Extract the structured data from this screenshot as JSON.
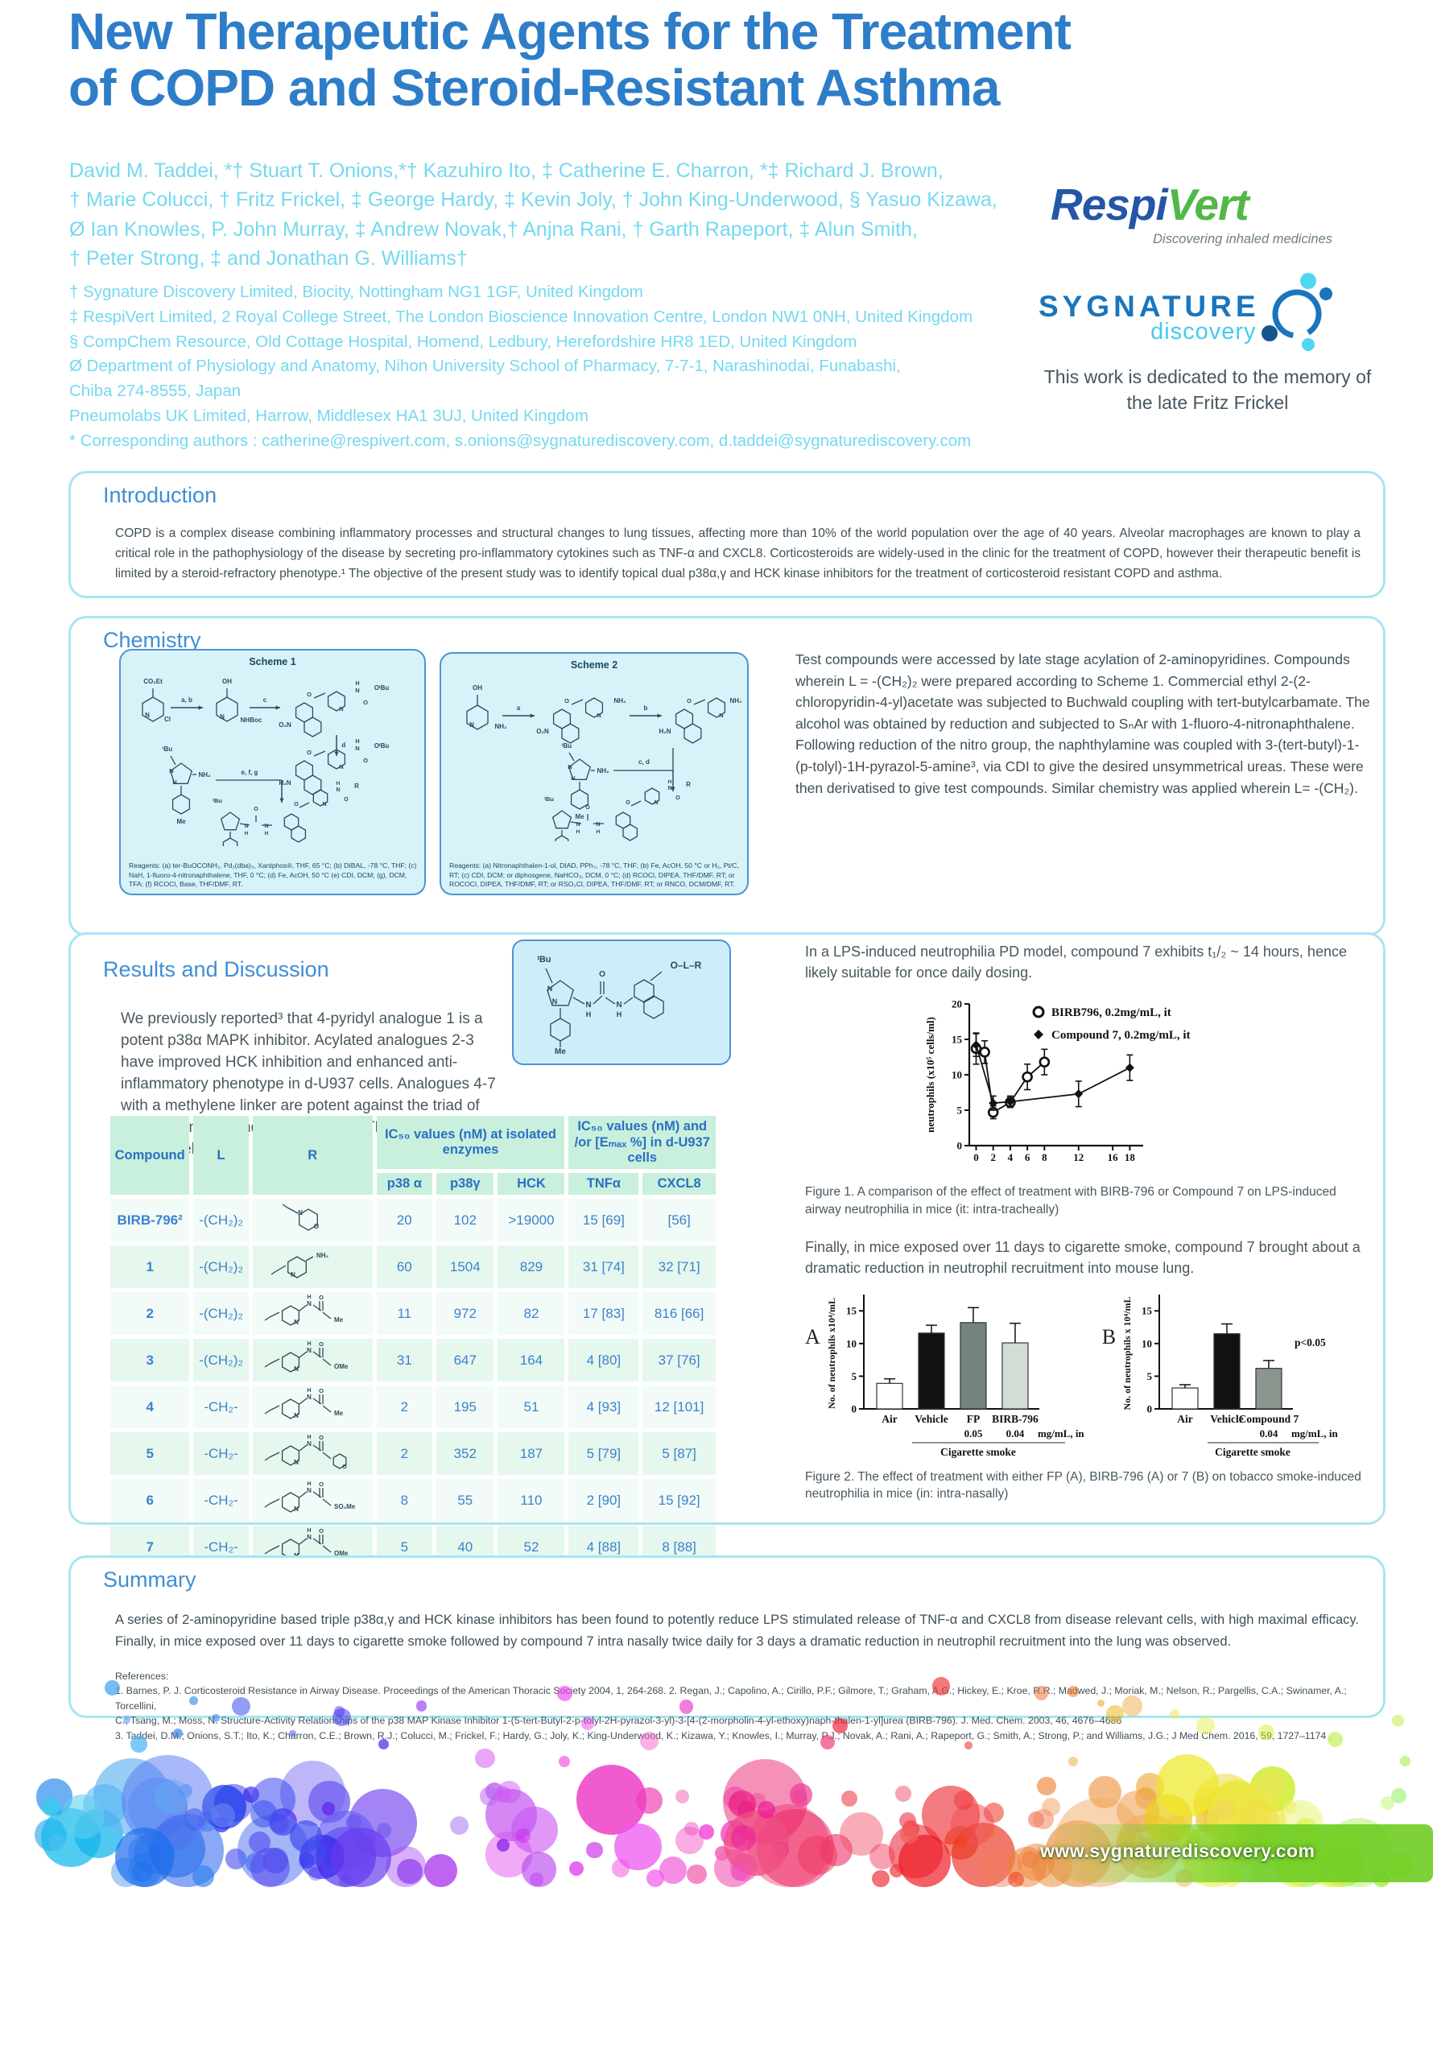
{
  "poster": {
    "title_line1": "New Therapeutic Agents for the Treatment",
    "title_line2": "of COPD and Steroid-Resistant Asthma",
    "authors": [
      "David M. Taddei, *† Stuart T. Onions,*† Kazuhiro Ito, ‡ Catherine E. Charron, *‡ Richard J. Brown,",
      "† Marie Colucci, † Fritz Frickel, ‡ George Hardy, ‡ Kevin Joly, † John King-Underwood, § Yasuo Kizawa,",
      "Ø Ian Knowles,   P. John Murray, ‡ Andrew Novak,† Anjna Rani, † Garth Rapeport, ‡ Alun Smith,",
      "† Peter Strong, ‡ and Jonathan G. Williams†"
    ],
    "affiliations": [
      "† Sygnature Discovery Limited, Biocity, Nottingham NG1 1GF, United Kingdom",
      "‡ RespiVert Limited, 2 Royal College Street, The London Bioscience Innovation Centre, London NW1 0NH, United Kingdom",
      "§ CompChem Resource, Old Cottage Hospital, Homend, Ledbury, Herefordshire HR8 1ED, United Kingdom",
      "Ø Department of Physiology and Anatomy, Nihon University School of Pharmacy, 7-7-1, Narashinodai, Funabashi,",
      "Chiba 274-8555, Japan",
      "Pneumolabs UK Limited, Harrow, Middlesex HA1 3UJ, United Kingdom",
      "* Corresponding authors : catherine@respivert.com,  s.onions@sygnaturediscovery.com, d.taddei@sygnaturediscovery.com"
    ],
    "dedication": "This work is dedicated to the memory of the late Fritz Frickel"
  },
  "logos": {
    "respivert": {
      "respi": "Respi",
      "vert": "Vert",
      "tagline": "Discovering inhaled medicines"
    },
    "sygnature": {
      "name": "SYGNATURE",
      "sub": "discovery"
    }
  },
  "colors": {
    "title_blue": "#2e7dc8",
    "cyan_text": "#74d9f0",
    "heading_blue": "#3e8fd5",
    "box_border": "#a5e6f3",
    "scheme_bg": "#d8f2fa",
    "scheme_border": "#4e93d3",
    "table_header_bg": "#c8f0dd",
    "table_text": "#3b82ce",
    "respi_blue": "#2456a8",
    "vert_green": "#53b748"
  },
  "introduction": {
    "heading": "Introduction",
    "body": "COPD is a complex disease combining inflammatory processes and structural changes to lung tissues, affecting more than 10% of the world population over the age of 40 years. Alveolar macrophages are known to play a critical role in the pathophysiology of the disease by secreting pro-inflammatory cytokines such as TNF-α and CXCL8. Corticosteroids are widely-used in the clinic for the treatment of COPD, however their therapeutic benefit is limited by a steroid-refractory phenotype.¹ The objective of the present study was to identify topical dual p38α,γ and HCK kinase inhibitors for the treatment of corticosteroid resistant COPD and asthma."
  },
  "chemistry": {
    "heading": "Chemistry",
    "body": "Test compounds were accessed by late stage acylation of 2-aminopyridines. Compounds wherein L = -(CH₂)₂ were prepared according to Scheme 1. Commercial ethyl 2-(2-chloropyridin-4-yl)acetate was subjected to Buchwald coupling with tert-butylcarbamate. The alcohol was obtained by reduction and subjected to SₙAr  with 1-fluoro-4-nitronaphthalene.  Following reduction of the nitro group, the naphthylamine was coupled with 3-(tert-butyl)-1-(p-tolyl)-1H-pyrazol-5-amine³, via CDI to give the desired unsymmetrical ureas. These were then derivatised to give test compounds. Similar chemistry was applied wherein L= -(CH₂).",
    "scheme1": {
      "title": "Scheme 1",
      "labels": {
        "co2et": "CO₂Et",
        "cl": "Cl",
        "oh": "OH",
        "nhboc": "NHBoc",
        "o2n": "O₂N",
        "h2n": "H₂N",
        "obu": "OᵗBu",
        "nh2": "NH₂",
        "tbu": "ᵗBu",
        "me": "Me",
        "r": "R",
        "n": "N",
        "o": "O",
        "h": "H",
        "step_ab": "a, b",
        "step_c": "c",
        "step_d": "d",
        "step_efg": "e, f, g"
      },
      "reagents": "Reagents: (a) ter-BuOCONH₂, Pd₂(dba)₃, Xantphos®, THF, 65 °C; (b) DIBAL, -78 °C, THF; (c) NaH, 1-fluoro-4-nitronaphthalene, THF, 0 °C; (d) Fe, AcOH, 50 °C (e) CDI, DCM; (g), DCM, TFA; (f) RCOCl, Base, THF/DMF, RT."
    },
    "scheme2": {
      "title": "Scheme 2",
      "labels": {
        "oh": "OH",
        "nh2": "NH₂",
        "o2n": "O₂N",
        "h2n": "H₂N",
        "tbu": "ᵗBu",
        "me": "Me",
        "r": "R",
        "n": "N",
        "o": "O",
        "h": "H",
        "step_a": "a",
        "step_b": "b",
        "step_cd": "c, d"
      },
      "reagents": "Reagents: (a) Nitronaphthalen-1-ol, DIAD, PPh₃, -78 °C, THF; (b) Fe, AcOH, 50 °C or H₂, Pt/C, RT; (c) CDI, DCM; or diphosgene, NaHCO₃, DCM, 0 °C; (d) RCOCl, DIPEA, THF/DMF, RT; or ROCOCl, DIPEA, THF/DMF, RT; or RSO₂Cl, DIPEA, THF/DMF, RT; or RNCO, DCM/DMF, RT."
    }
  },
  "results": {
    "heading": "Results and Discussion",
    "intro": "We previously reported³ that 4-pyridyl analogue 1 is a potent p38α MAPK inhibitor. Acylated analogues 2-3 have improved HCK inhibition and enhanced anti-inflammatory phenotype in d-U937 cells. Analogues 4-7 with a methylene linker are potent against the triad of isolated kinases and strongly inhibit TNFα and CXCL8 in d-U937 cells.",
    "structure_labels": {
      "tbu": "ᵗBu",
      "olr": "O–L–R",
      "me": "Me"
    },
    "table": {
      "headers": {
        "compound": "Compound",
        "l": "L",
        "r": "R",
        "group1": "IC₅₀ values (nM) at isolated enzymes",
        "group2": "IC₅₀ values (nM) and /or [Eₘₐₓ %] in d-U937 cells",
        "sub": [
          "p38 α",
          "p38γ",
          "HCK",
          "TNFα",
          "CXCL8"
        ]
      },
      "rows": [
        {
          "compound": "BIRB-796²",
          "l": "-(CH₂)₂",
          "r_type": "morpholine",
          "r_label": "",
          "p38a": "20",
          "p38g": "102",
          "hck": ">19000",
          "tnfa": "15 [69]",
          "cxcl8": "[56]"
        },
        {
          "compound": "1",
          "l": "-(CH₂)₂",
          "r_type": "aminopyridine",
          "r_label": "NH₂",
          "p38a": "60",
          "p38g": "1504",
          "hck": "829",
          "tnfa": "31 [74]",
          "cxcl8": "32 [71]"
        },
        {
          "compound": "2",
          "l": "-(CH₂)₂",
          "r_type": "amide",
          "r_label": "Me",
          "p38a": "11",
          "p38g": "972",
          "hck": "82",
          "tnfa": "17 [83]",
          "cxcl8": "816 [66]"
        },
        {
          "compound": "3",
          "l": "-(CH₂)₂",
          "r_type": "amide",
          "r_label": "OMe",
          "p38a": "31",
          "p38g": "647",
          "hck": "164",
          "tnfa": "4 [80]",
          "cxcl8": "37 [76]"
        },
        {
          "compound": "4",
          "l": "-CH₂-",
          "r_type": "amide",
          "r_label": "Me",
          "p38a": "2",
          "p38g": "195",
          "hck": "51",
          "tnfa": "4 [93]",
          "cxcl8": "12 [101]"
        },
        {
          "compound": "5",
          "l": "-CH₂-",
          "r_type": "amide_morpholine",
          "r_label": "",
          "p38a": "2",
          "p38g": "352",
          "hck": "187",
          "tnfa": "5 [79]",
          "cxcl8": "5 [87]"
        },
        {
          "compound": "6",
          "l": "-CH₂-",
          "r_type": "amide",
          "r_label": "SO₂Me",
          "p38a": "8",
          "p38g": "55",
          "hck": "110",
          "tnfa": "2 [90]",
          "cxcl8": "15 [92]"
        },
        {
          "compound": "7",
          "l": "-CH₂-",
          "r_type": "amide",
          "r_label": "OMe",
          "p38a": "5",
          "p38g": "40",
          "hck": "52",
          "tnfa": "4 [88]",
          "cxcl8": "8 [88]"
        }
      ]
    },
    "pd_text": "In a LPS-induced neutrophilia PD model, compound 7 exhibits t₁/₂ ~ 14 hours, hence likely suitable for once daily dosing.",
    "figure1_caption": "Figure 1.  A comparison of the effect of treatment with BIRB-796 or Compound 7 on LPS-induced airway neutrophilia in mice (it: intra-tracheally)",
    "smoke_text": "Finally, in mice exposed over 11 days to cigarette smoke, compound 7 brought about a dramatic reduction in neutrophil recruitment into mouse lung.",
    "figure2": {
      "panel_a": "A",
      "panel_b": "B"
    },
    "figure2_caption": "Figure 2.  The effect of treatment with either FP (A), BIRB-796 (A) or 7 (B) on tobacco smoke-induced neutrophilia in mice (in: intra-nasally)"
  },
  "summary": {
    "heading": "Summary",
    "body": "A series of 2-aminopyridine based triple p38α,γ and HCK kinase inhibitors has been found to potently reduce LPS stimulated release of TNF-α and CXCL8 from disease relevant cells, with high maximal efficacy. Finally, in mice exposed over 11 days to cigarette smoke followed by compound 7 intra nasally twice daily for 3 days a dramatic reduction in neutrophil recruitment into the lung was observed.",
    "references_heading": "References:",
    "references": [
      "1. Barnes, P. J. Corticosteroid Resistance in Airway Disease. Proceedings of the American Thoracic Society 2004, 1, 264-268. 2. Regan, J.; Capolino, A.; Cirillo, P.F.; Gilmore, T.; Graham, A.G.; Hickey, E.; Kroe, R.R.; Madwed, J.; Moriak, M.; Nelson, R.; Pargellis, C.A.; Swinamer, A.; Torcellini,",
      "C.; Tsang, M.; Moss, N. Structure-Activity Relationships of the p38 MAP Kinase Inhibitor 1-(5-tert-Butyl-2-p-tolyl-2H-pyrazol-3-yl)-3-[4-(2-morpholin-4-yl-ethoxy)naph-thalen-1-yl]urea (BIRB-796). J. Med. Chem. 2003, 46, 4676–4686",
      "3. Taddei, D.M.; Onions, S.T.; Ito, K.; Charron, C.E.; Brown, R.J.; Colucci, M.; Frickel, F.; Hardy, G.; Joly, K.; King-Underwood, K.; Kizawa, Y.; Knowles, I.; Murray, P.J.; Novak, A.; Rani, A.; Rapeport, G.; Smith, A.; Strong, P.; and Williams, J.G.; J Med Chem. 2016, 59, 1727–1174 ."
    ]
  },
  "footer": {
    "url": "www.sygnaturediscovery.com"
  },
  "chart_data": [
    {
      "type": "line",
      "title": "",
      "xlabel": "",
      "ylabel": "neutrophils (x10⁵ cells/ml)",
      "ylim": [
        0,
        20
      ],
      "yticks": [
        0,
        5,
        10,
        15,
        20
      ],
      "xticks": [
        0,
        2,
        4,
        6,
        8,
        12,
        16,
        18
      ],
      "legend_position": "top-right-inside",
      "series": [
        {
          "name": "BIRB796, 0.2mg/mL, it",
          "marker": "open-circle",
          "x": [
            0,
            1,
            2,
            4,
            6,
            8
          ],
          "y": [
            13.7,
            13.2,
            4.7,
            6.1,
            9.7,
            11.8
          ],
          "yerr": [
            2.2,
            1.6,
            0.9,
            0.7,
            1.8,
            1.8
          ]
        },
        {
          "name": "Compound 7, 0.2mg/mL, it",
          "marker": "filled-diamond",
          "x": [
            0,
            2,
            4,
            12,
            18
          ],
          "y": [
            14.2,
            6.0,
            6.2,
            7.3,
            11.0
          ],
          "yerr": [
            1.6,
            1.0,
            0.8,
            1.8,
            1.8
          ]
        }
      ]
    },
    {
      "type": "bar",
      "panel": "A",
      "ylabel": "No. of neutrophils x10⁴/mL",
      "ylim": [
        0,
        17
      ],
      "yticks": [
        0,
        5,
        10,
        15
      ],
      "categories": [
        "Air",
        "Vehicle",
        "FP",
        "BIRB-796"
      ],
      "values": [
        3.9,
        11.6,
        13.2,
        10.1
      ],
      "errors": [
        0.7,
        1.2,
        2.3,
        3.0
      ],
      "bar_colors": [
        "#ffffff",
        "#111111",
        "#74837c",
        "#d3dcd5"
      ],
      "sub_labels": [
        "",
        "",
        "0.05",
        "0.04"
      ],
      "unit_label": "mg/mL, in",
      "group_label": "Cigarette smoke"
    },
    {
      "type": "bar",
      "panel": "B",
      "ylabel": "No. of neutrophils x 10⁴/mL",
      "ylim": [
        0,
        17
      ],
      "yticks": [
        0,
        5,
        10,
        15
      ],
      "categories": [
        "Air",
        "Vehicle",
        "Compound 7"
      ],
      "values": [
        3.2,
        11.5,
        6.2
      ],
      "errors": [
        0.5,
        1.5,
        1.2
      ],
      "bar_colors": [
        "#ffffff",
        "#111111",
        "#8b958e"
      ],
      "sub_labels": [
        "",
        "",
        "0.04"
      ],
      "unit_label": "mg/mL, in",
      "group_label": "Cigarette smoke",
      "annotation": "p<0.05"
    }
  ]
}
